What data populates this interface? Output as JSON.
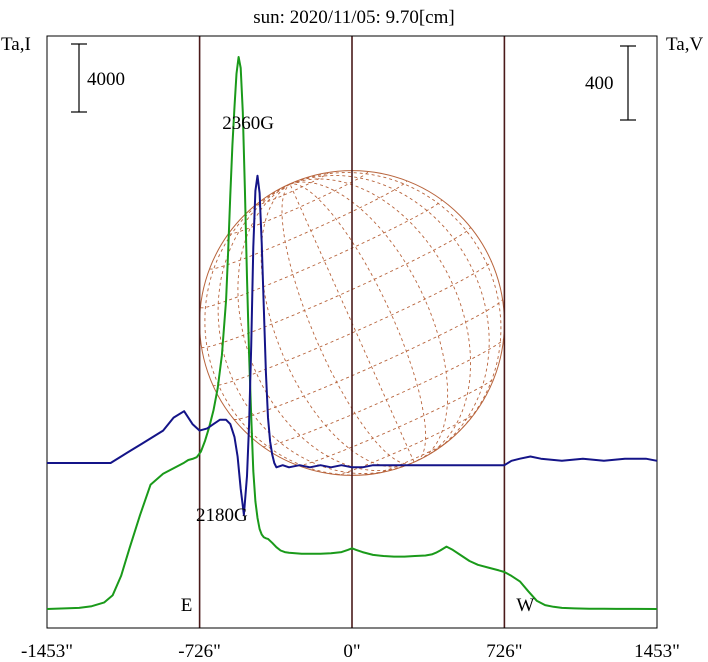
{
  "chart_data": {
    "type": "line",
    "title": "sun: 2020/11/05: 9.70[cm]",
    "left_axis_label": "Ta,I",
    "right_axis_label": "Ta,V",
    "left_scale_label": "4000",
    "right_scale_label": "400",
    "x_ticks": [
      {
        "value": -1453,
        "label": "-1453\""
      },
      {
        "value": -726,
        "label": "-726\""
      },
      {
        "value": 0,
        "label": "0\""
      },
      {
        "value": 726,
        "label": "726\""
      },
      {
        "value": 1453,
        "label": "1453\""
      }
    ],
    "xlim": [
      -1453,
      1453
    ],
    "vertical_lines": [
      -726,
      0,
      726
    ],
    "limb_labels": {
      "east": "E",
      "west": "W"
    },
    "annotations": [
      {
        "text": "2360G",
        "x": -495,
        "level": 0.88
      },
      {
        "text": "2180G",
        "x": -620,
        "level": 0.17
      }
    ],
    "colors": {
      "intensity": "#1a9a1a",
      "polarization": "#141488",
      "frame": "#000000",
      "vertical_line": "#4a1a1a",
      "disk": "#b8643c",
      "title": "#1c1c6e"
    },
    "series": [
      {
        "name": "Ta,I",
        "x": [
          -1453,
          -1300,
          -1240,
          -1180,
          -1140,
          -1100,
          -1060,
          -1010,
          -960,
          -900,
          -850,
          -800,
          -780,
          -760,
          -740,
          -720,
          -700,
          -680,
          -660,
          -640,
          -620,
          -600,
          -590,
          -580,
          -570,
          -560,
          -550,
          -540,
          -530,
          -520,
          -510,
          -500,
          -490,
          -480,
          -470,
          -460,
          -450,
          -440,
          -430,
          -420,
          -410,
          -400,
          -380,
          -360,
          -340,
          -320,
          -300,
          -270,
          -240,
          -200,
          -150,
          -100,
          -50,
          -20,
          0,
          20,
          50,
          100,
          150,
          200,
          250,
          300,
          350,
          380,
          400,
          420,
          450,
          480,
          520,
          560,
          600,
          650,
          700,
          726,
          760,
          800,
          840,
          880,
          920,
          960,
          1000,
          1060,
          1130,
          1200,
          1260,
          1330,
          1453
        ],
        "y": [
          0.0,
          0.002,
          0.005,
          0.012,
          0.025,
          0.06,
          0.11,
          0.17,
          0.225,
          0.245,
          0.255,
          0.265,
          0.27,
          0.272,
          0.275,
          0.285,
          0.305,
          0.33,
          0.36,
          0.4,
          0.46,
          0.56,
          0.65,
          0.75,
          0.84,
          0.91,
          0.97,
          1.0,
          0.98,
          0.9,
          0.76,
          0.6,
          0.46,
          0.35,
          0.25,
          0.195,
          0.165,
          0.145,
          0.135,
          0.13,
          0.128,
          0.127,
          0.12,
          0.112,
          0.106,
          0.103,
          0.102,
          0.101,
          0.1,
          0.1,
          0.1,
          0.101,
          0.103,
          0.107,
          0.11,
          0.107,
          0.103,
          0.098,
          0.096,
          0.095,
          0.095,
          0.096,
          0.097,
          0.099,
          0.102,
          0.106,
          0.113,
          0.107,
          0.097,
          0.087,
          0.08,
          0.075,
          0.07,
          0.067,
          0.06,
          0.05,
          0.032,
          0.015,
          0.007,
          0.004,
          0.002,
          0.001,
          0.0005,
          0.0003,
          0.0002,
          0.0001,
          0.0
        ]
      },
      {
        "name": "Ta,V",
        "x": [
          -1453,
          -1200,
          -1150,
          -1100,
          -1050,
          -1000,
          -950,
          -900,
          -850,
          -800,
          -760,
          -726,
          -690,
          -660,
          -630,
          -600,
          -580,
          -560,
          -545,
          -530,
          -515,
          -500,
          -490,
          -480,
          -470,
          -460,
          -450,
          -440,
          -430,
          -420,
          -410,
          -400,
          -390,
          -380,
          -370,
          -360,
          -330,
          -300,
          -250,
          -200,
          -150,
          -100,
          -50,
          0,
          50,
          100,
          200,
          300,
          400,
          500,
          600,
          700,
          726,
          760,
          800,
          850,
          900,
          1000,
          1100,
          1200,
          1300,
          1400,
          1453
        ],
        "y": [
          0.0,
          0.0,
          0.0,
          0.3,
          0.6,
          0.9,
          1.2,
          1.5,
          2.1,
          2.4,
          1.8,
          1.5,
          1.6,
          1.8,
          2.0,
          2.0,
          1.8,
          1.2,
          0.3,
          -1.2,
          -2.4,
          -0.6,
          1.8,
          5.4,
          10.0,
          12.6,
          13.3,
          12.5,
          10.2,
          7.2,
          4.2,
          2.1,
          1.0,
          0.4,
          0.0,
          -0.2,
          -0.1,
          -0.2,
          -0.1,
          -0.2,
          -0.1,
          -0.2,
          -0.1,
          -0.2,
          -0.2,
          -0.1,
          -0.1,
          -0.1,
          -0.1,
          -0.1,
          -0.1,
          -0.1,
          -0.1,
          0.1,
          0.2,
          0.3,
          0.2,
          0.1,
          0.2,
          0.1,
          0.2,
          0.2,
          0.1
        ]
      }
    ]
  }
}
